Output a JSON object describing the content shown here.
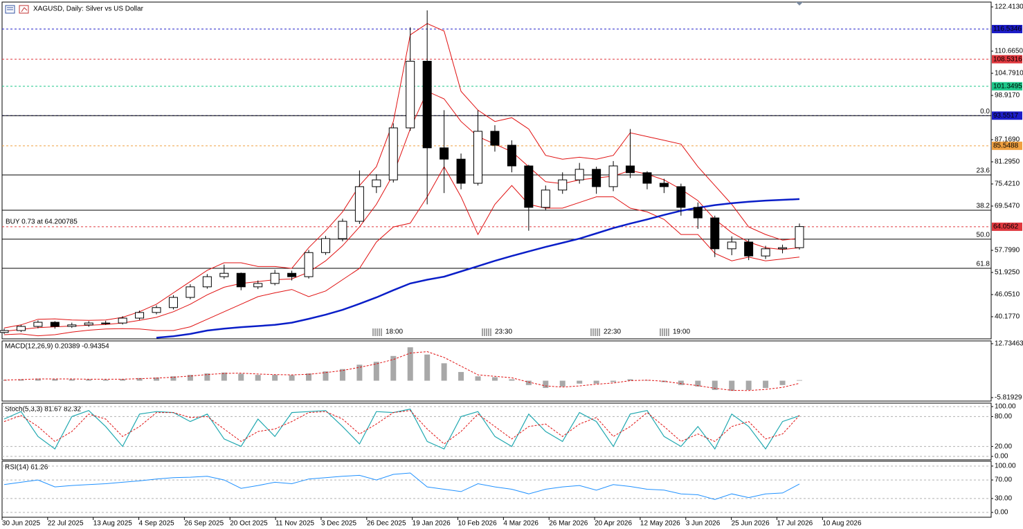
{
  "chart_data": [
    {
      "type": "candlestick",
      "title": "XAGUSD, Daily:  Silver vs US Dollar",
      "open": [
        36.0,
        36.5,
        37.6,
        38.7,
        37.6,
        38.0,
        38.5,
        38.5,
        39.8,
        41.3,
        42.6,
        45.3,
        48.1,
        50.8,
        51.7,
        48.1,
        49.0,
        51.7,
        50.8,
        57.2,
        60.9,
        65.5,
        74.7,
        76.5,
        90.3,
        108.0,
        85.0,
        82.0,
        75.6,
        89.4,
        85.7,
        80.2,
        69.2,
        73.8,
        76.5,
        79.3,
        74.7,
        80.2,
        78.4,
        75.6,
        74.7,
        69.2,
        66.4,
        58.2,
        60.0,
        56.3,
        58.2,
        58.5
      ],
      "high": [
        37.0,
        38.0,
        39.2,
        39.0,
        38.6,
        39.0,
        39.1,
        40.3,
        41.8,
        43.2,
        45.9,
        48.8,
        51.5,
        54.0,
        51.9,
        49.8,
        52.6,
        52.4,
        57.9,
        61.6,
        66.2,
        79.0,
        78.0,
        91.5,
        117.0,
        121.5,
        95.0,
        83.5,
        95.0,
        91.0,
        87.0,
        80.5,
        75.0,
        78.5,
        81.0,
        80.0,
        81.5,
        90.0,
        78.8,
        76.8,
        75.5,
        70.5,
        67.0,
        61.5,
        60.8,
        59.0,
        59.3,
        64.9
      ],
      "low": [
        35.6,
        36.1,
        37.1,
        37.0,
        37.2,
        37.5,
        38.0,
        38.1,
        39.3,
        40.8,
        42.1,
        44.8,
        47.6,
        50.2,
        47.2,
        47.5,
        48.5,
        49.8,
        50.3,
        56.6,
        60.2,
        64.8,
        73.0,
        75.8,
        89.5,
        70.0,
        73.0,
        74.0,
        75.0,
        84.0,
        78.5,
        63.0,
        68.5,
        72.8,
        75.5,
        72.8,
        73.5,
        77.0,
        74.0,
        73.0,
        67.0,
        63.5,
        56.0,
        56.5,
        55.2,
        55.5,
        57.0,
        58.0
      ],
      "close": [
        36.5,
        37.6,
        38.7,
        37.6,
        38.0,
        38.5,
        38.5,
        39.8,
        41.3,
        42.6,
        45.3,
        48.1,
        50.8,
        51.7,
        48.1,
        49.0,
        51.7,
        50.8,
        57.2,
        60.9,
        65.5,
        74.7,
        76.5,
        90.3,
        108.0,
        85.0,
        82.0,
        75.6,
        89.4,
        85.7,
        80.2,
        69.2,
        73.8,
        76.5,
        79.3,
        74.7,
        80.2,
        78.4,
        75.6,
        74.7,
        69.2,
        66.4,
        58.2,
        60.0,
        56.3,
        58.2,
        58.5,
        64.1
      ],
      "up_color": "#ffffff",
      "down_color": "#000000",
      "bollinger": {
        "color": "#e01010",
        "upper": [
          37.2,
          38.0,
          39.5,
          39.6,
          39.3,
          39.2,
          39.3,
          40.0,
          41.5,
          43.5,
          46.5,
          49.5,
          52.5,
          54.5,
          54.5,
          53.5,
          53.5,
          53.0,
          58.5,
          63.0,
          68.0,
          75.0,
          80.0,
          92.0,
          115.0,
          118.0,
          116.0,
          100.0,
          95.0,
          92.0,
          93.0,
          90.0,
          83.0,
          82.0,
          82.5,
          82.0,
          83.0,
          89.0,
          88.0,
          87.0,
          86.0,
          80.0,
          75.0,
          70.0,
          64.0,
          62.0,
          60.5,
          61.0
        ],
        "middle": [
          36.3,
          36.8,
          37.3,
          37.5,
          37.7,
          37.9,
          38.1,
          38.5,
          39.2,
          40.0,
          41.5,
          43.5,
          46.0,
          48.0,
          49.0,
          49.5,
          50.0,
          50.2,
          52.0,
          55.0,
          59.0,
          64.0,
          70.0,
          78.0,
          90.0,
          100.0,
          98.0,
          92.0,
          88.0,
          86.0,
          84.0,
          80.0,
          76.0,
          75.5,
          76.5,
          77.0,
          77.5,
          79.0,
          78.0,
          76.5,
          74.0,
          71.0,
          66.0,
          62.5,
          60.0,
          58.5,
          58.0,
          58.5
        ],
        "lower": [
          35.4,
          35.6,
          35.1,
          35.4,
          36.1,
          36.6,
          36.9,
          37.0,
          36.9,
          36.5,
          36.5,
          37.5,
          39.5,
          41.5,
          43.5,
          45.5,
          46.5,
          47.4,
          45.5,
          47.0,
          50.0,
          53.0,
          60.0,
          64.0,
          65.0,
          72.0,
          80.0,
          72.0,
          62.0,
          70.0,
          75.0,
          70.0,
          69.0,
          69.0,
          70.5,
          72.0,
          72.0,
          69.0,
          68.0,
          66.0,
          62.0,
          62.0,
          57.0,
          55.0,
          56.0,
          55.0,
          55.5,
          56.0
        ]
      },
      "ma": {
        "color": "#0a1ec8",
        "values": [
          null,
          null,
          null,
          null,
          null,
          null,
          null,
          null,
          null,
          34.6,
          35.0,
          35.6,
          36.5,
          37.0,
          37.4,
          37.7,
          38.0,
          38.6,
          39.6,
          40.7,
          42.0,
          43.6,
          45.3,
          47.2,
          49.0,
          50.0,
          50.8,
          52.2,
          53.6,
          55.0,
          56.3,
          57.5,
          58.7,
          59.8,
          60.9,
          62.3,
          63.7,
          64.9,
          66.0,
          67.2,
          68.3,
          69.1,
          69.8,
          70.3,
          70.7,
          71.0,
          71.2,
          71.4
        ]
      },
      "levels": [
        {
          "value": 116.5346,
          "color": "#1c1cc8"
        },
        {
          "value": 108.5316,
          "color": "#e0383e"
        },
        {
          "value": 101.3495,
          "color": "#1ec88a"
        },
        {
          "value": 93.5517,
          "color": "#1c1cc8"
        },
        {
          "value": 85.5488,
          "color": "#f0a040"
        },
        {
          "value": 64.0562,
          "color": "#e0383e"
        }
      ],
      "fib": [
        {
          "label": "0.0",
          "value": 93.5517
        },
        {
          "label": "23.6",
          "value": 77.8
        },
        {
          "label": "38.2",
          "value": 68.45
        },
        {
          "label": "50.0",
          "value": 60.75
        },
        {
          "label": "61.8",
          "value": 53.03
        }
      ],
      "annotation": "BUY 0.73 at 64.200785",
      "time_marks": [
        "18:00",
        "23:30",
        "22:30",
        "19:00"
      ],
      "ylim": [
        34.3,
        123.7
      ],
      "yticks": [
        {
          "value": 122.413,
          "label": "122.4130"
        },
        {
          "value": 110.665,
          "label": "110.6650"
        },
        {
          "value": 104.791,
          "label": "104.7910"
        },
        {
          "value": 98.917,
          "label": "98.9170"
        },
        {
          "value": 87.169,
          "label": "87.1690"
        },
        {
          "value": 81.295,
          "label": "81.2950"
        },
        {
          "value": 75.421,
          "label": "75.4210"
        },
        {
          "value": 69.547,
          "label": "69.5470"
        },
        {
          "value": 57.799,
          "label": "57.7990"
        },
        {
          "value": 51.925,
          "label": "51.9250"
        },
        {
          "value": 46.051,
          "label": "46.0510"
        },
        {
          "value": 40.177,
          "label": "40.1770"
        }
      ],
      "grid": false
    },
    {
      "type": "macd",
      "title": "MACD(12,26,9) 0.20389 -0.94354",
      "histogram": {
        "color": "#a8a8a8",
        "values": [
          0.3,
          0.5,
          0.7,
          0.6,
          0.5,
          0.5,
          0.4,
          0.6,
          0.9,
          1.1,
          1.5,
          2.0,
          2.5,
          2.8,
          2.4,
          2.0,
          2.0,
          1.9,
          2.5,
          3.2,
          4.0,
          5.5,
          6.5,
          8.5,
          11.5,
          9.0,
          6.0,
          3.0,
          1.5,
          1.2,
          0.5,
          -1.5,
          -2.5,
          -2.0,
          -1.0,
          -1.0,
          -0.5,
          0.5,
          0.2,
          -0.5,
          -1.5,
          -2.0,
          -3.2,
          -3.5,
          -3.2,
          -2.5,
          -1.5,
          0.2
        ]
      },
      "signal": {
        "color": "#e01010",
        "values": [
          0.2,
          0.4,
          0.6,
          0.6,
          0.6,
          0.5,
          0.5,
          0.5,
          0.7,
          0.9,
          1.2,
          1.6,
          2.1,
          2.5,
          2.6,
          2.3,
          2.1,
          2.0,
          2.2,
          2.8,
          3.5,
          4.6,
          5.8,
          7.3,
          9.5,
          10.0,
          8.0,
          5.0,
          2.0,
          1.5,
          1.0,
          -0.5,
          -1.8,
          -2.2,
          -1.8,
          -1.2,
          -0.8,
          0.0,
          0.2,
          -0.2,
          -1.0,
          -1.7,
          -2.6,
          -3.3,
          -3.4,
          -3.0,
          -2.3,
          -0.9
        ]
      },
      "ylim": [
        -7.01,
        13.69
      ],
      "yticks": [
        12.73463,
        -5.81929
      ],
      "grid": false
    },
    {
      "type": "stochastic",
      "title": "Stoch(5,3,3) 81.67 82.32",
      "main": {
        "color": "#20a8b0",
        "values": [
          75,
          90,
          40,
          15,
          80,
          92,
          60,
          20,
          85,
          90,
          88,
          70,
          85,
          35,
          20,
          75,
          40,
          88,
          90,
          92,
          60,
          25,
          90,
          88,
          95,
          30,
          15,
          80,
          90,
          40,
          20,
          85,
          50,
          30,
          88,
          70,
          20,
          85,
          92,
          40,
          20,
          60,
          15,
          85,
          60,
          15,
          70,
          81.67
        ]
      },
      "signal": {
        "color": "#e01010",
        "values": [
          70,
          82,
          60,
          30,
          50,
          85,
          75,
          40,
          60,
          88,
          88,
          78,
          80,
          55,
          30,
          50,
          55,
          70,
          88,
          90,
          75,
          45,
          65,
          88,
          92,
          55,
          25,
          50,
          85,
          60,
          35,
          60,
          65,
          40,
          65,
          78,
          40,
          60,
          88,
          60,
          30,
          45,
          30,
          60,
          70,
          35,
          45,
          82.32
        ]
      },
      "ylim": [
        -6.9,
        106.9
      ],
      "yticks": [
        {
          "value": 100,
          "label": "100.00"
        },
        {
          "value": 80,
          "label": "80.00"
        },
        {
          "value": 20,
          "label": "20.00"
        },
        {
          "value": 0,
          "label": "0.00"
        }
      ],
      "grid": true
    },
    {
      "type": "rsi",
      "title": "RSI(14) 61.26",
      "line": {
        "color": "#1e90ff",
        "values": [
          60,
          65,
          70,
          55,
          58,
          60,
          62,
          65,
          68,
          72,
          75,
          76,
          78,
          70,
          52,
          58,
          65,
          62,
          72,
          75,
          78,
          80,
          70,
          82,
          85,
          55,
          50,
          45,
          62,
          55,
          50,
          40,
          50,
          55,
          58,
          48,
          60,
          56,
          50,
          48,
          40,
          38,
          28,
          40,
          32,
          40,
          42,
          61.26
        ]
      },
      "ylim": [
        -10.4,
        110.4
      ],
      "yticks": [
        {
          "value": 100,
          "label": "100.00"
        },
        {
          "value": 70,
          "label": "70.00"
        },
        {
          "value": 30,
          "label": "30.00"
        },
        {
          "value": 0,
          "label": "0.00"
        }
      ],
      "grid": true,
      "categories": [
        "30 Jun 2025",
        "22 Jul 2025",
        "13 Aug 2025",
        "4 Sep 2025",
        "26 Sep 2025",
        "20 Oct 2025",
        "11 Nov 2025",
        "3 Dec 2025",
        "26 Dec 2025",
        "19 Jan 2026",
        "10 Feb 2026",
        "4 Mar 2026",
        "26 Mar 2026",
        "20 Apr 2026",
        "12 May 2026",
        "3 Jun 2026",
        "25 Jun 2026",
        "17 Jul 2026",
        "10 Aug 2026"
      ]
    }
  ]
}
